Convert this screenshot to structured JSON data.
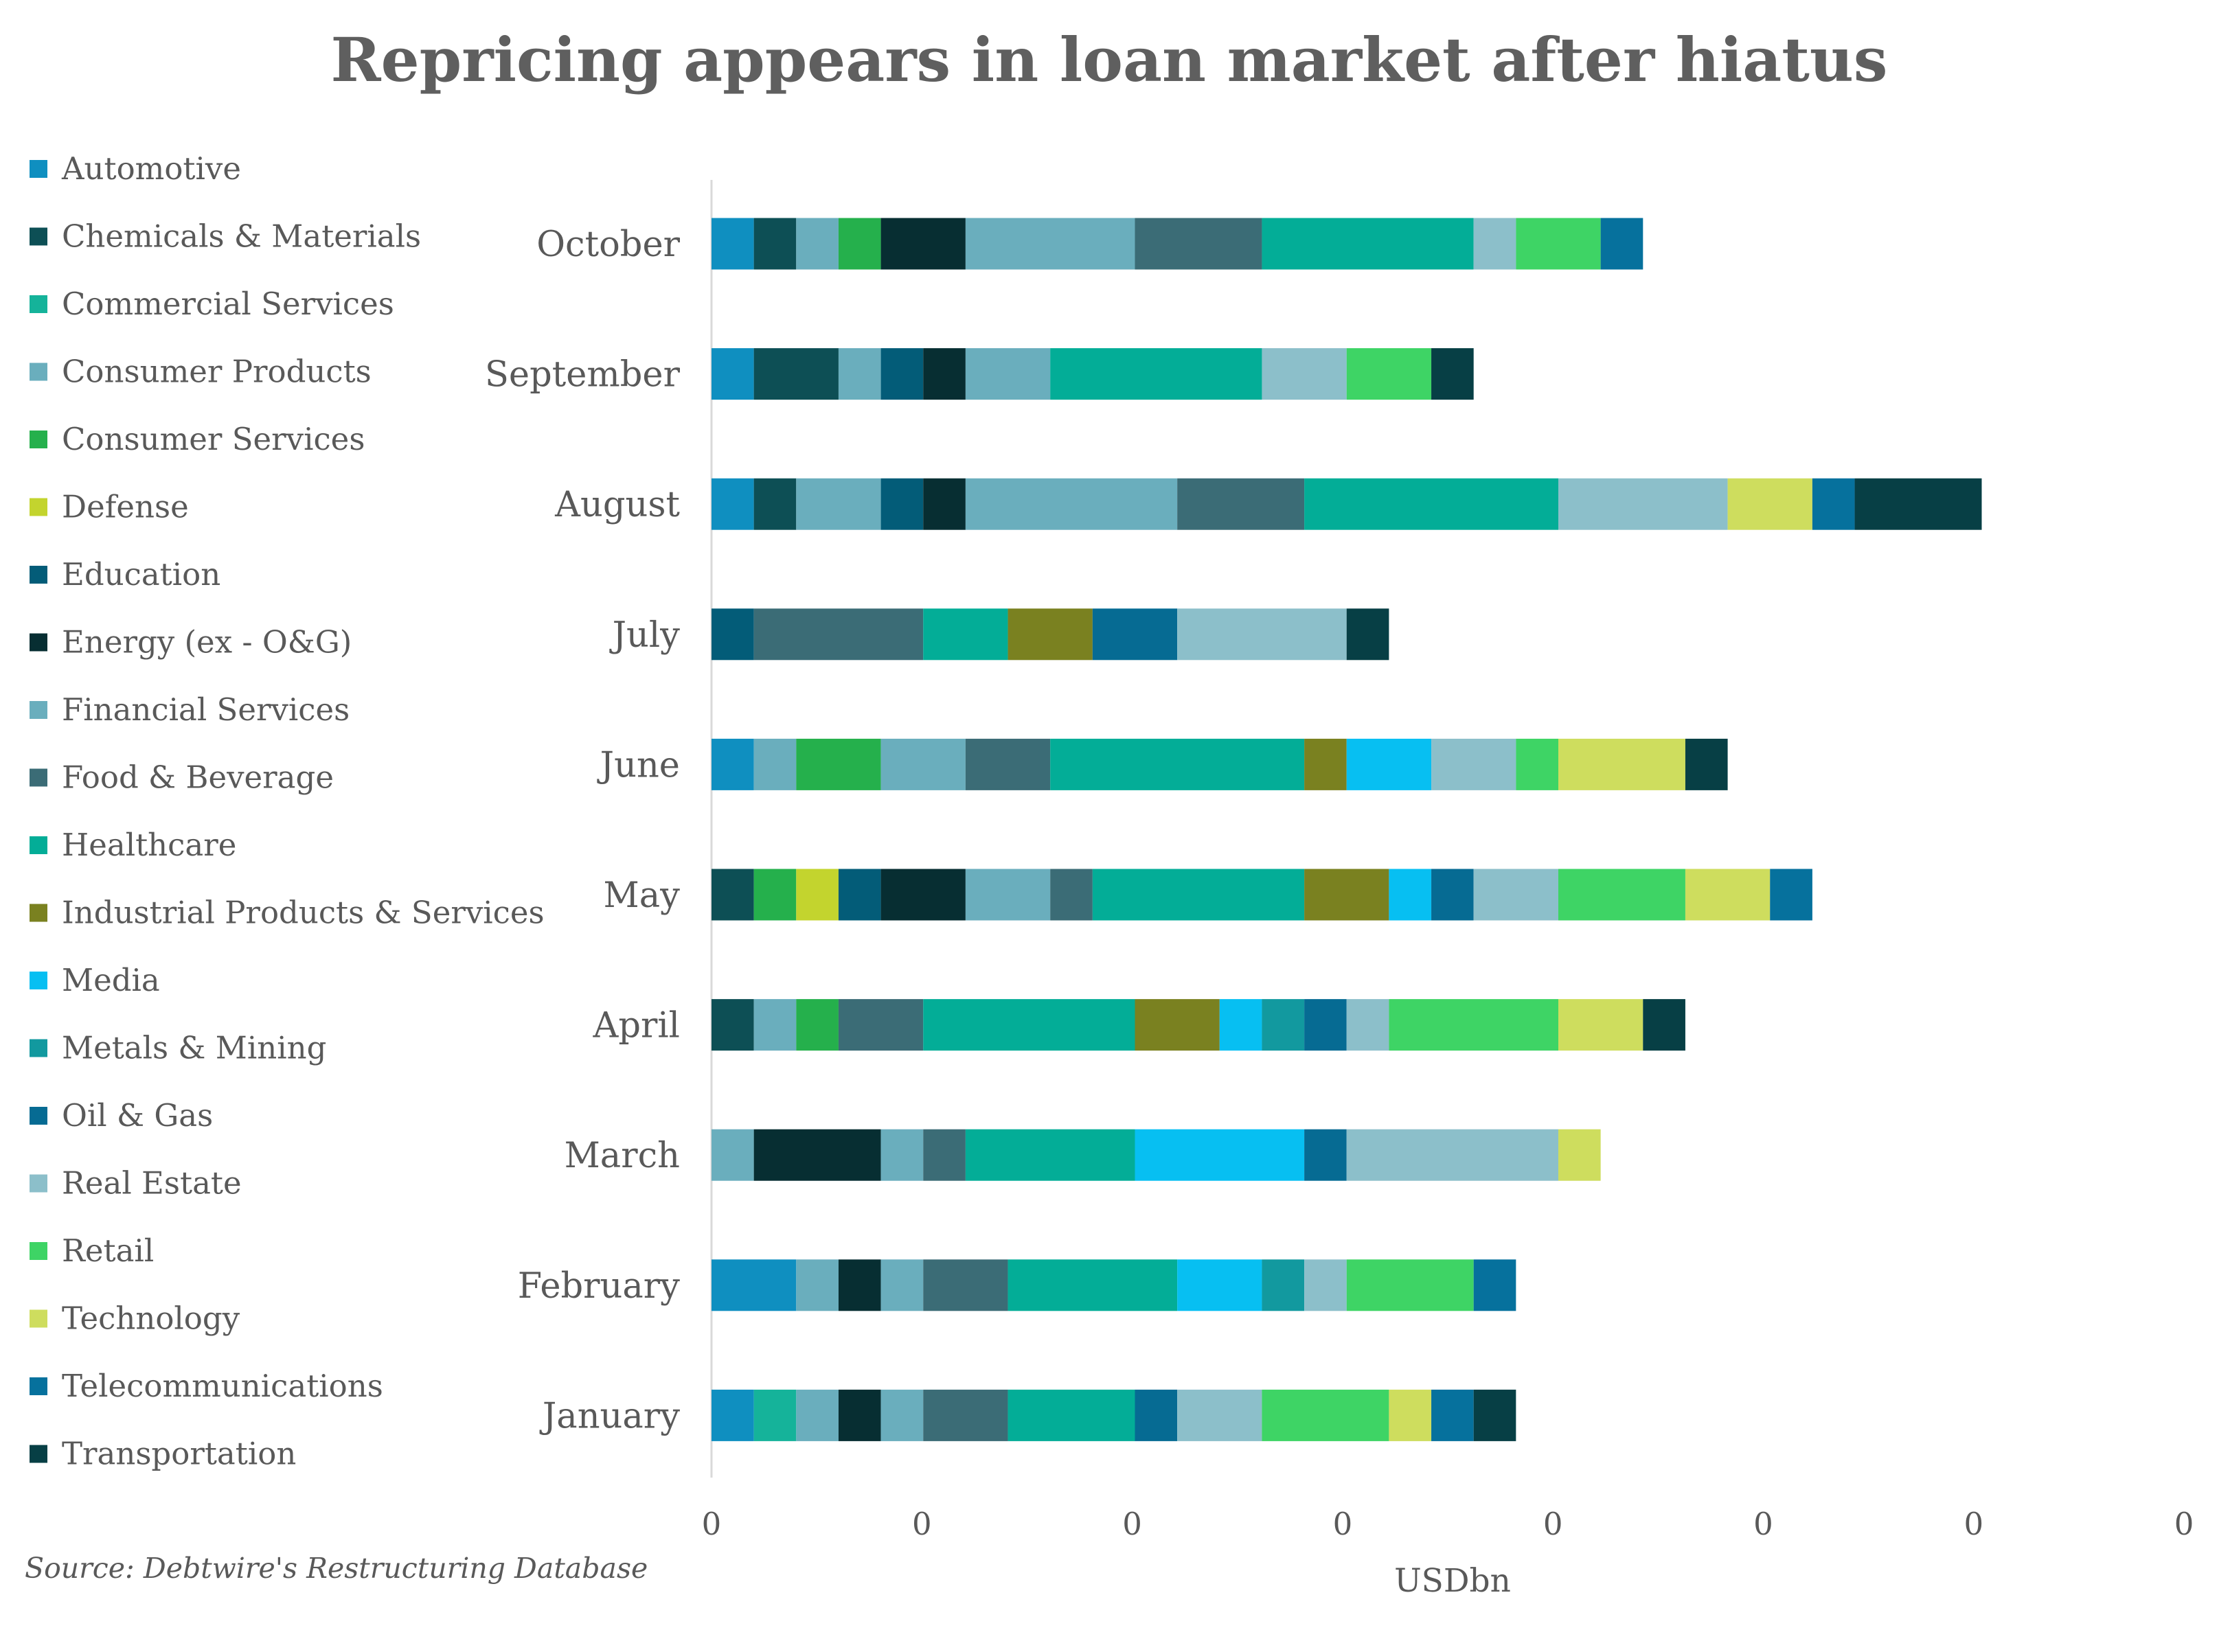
{
  "chart_data": {
    "type": "bar",
    "orientation": "horizontal",
    "stacked": true,
    "title": "Repricing appears in loan market after hiatus",
    "xlabel": "USDbn",
    "source": "Source: Debtwire's Restructuring Database",
    "legend_position": "left",
    "grid": false,
    "x_tick_labels": [
      "0",
      "0",
      "0",
      "0",
      "0",
      "0",
      "0",
      "0"
    ],
    "categories": [
      "October",
      "September",
      "August",
      "July",
      "June",
      "May",
      "April",
      "March",
      "February",
      "January"
    ],
    "series": [
      {
        "name": "Automotive",
        "color": "#0f8fc0",
        "values": [
          1,
          1,
          1,
          0,
          1,
          0,
          0,
          0,
          2,
          1
        ]
      },
      {
        "name": "Chemicals & Materials",
        "color": "#0d4f55",
        "values": [
          1,
          2,
          1,
          0,
          0,
          1,
          1,
          0,
          0,
          0
        ]
      },
      {
        "name": "Commercial Services",
        "color": "#15b39a",
        "values": [
          0,
          0,
          0,
          0,
          0,
          0,
          0,
          0,
          0,
          1
        ]
      },
      {
        "name": "Consumer Products",
        "color": "#6aaebd",
        "values": [
          1,
          1,
          2,
          0,
          1,
          0,
          1,
          1,
          1,
          1
        ]
      },
      {
        "name": "Consumer Services",
        "color": "#25b04c",
        "values": [
          1,
          0,
          0,
          0,
          2,
          1,
          1,
          0,
          0,
          0
        ]
      },
      {
        "name": "Defense",
        "color": "#c3d42e",
        "values": [
          0,
          0,
          0,
          0,
          0,
          1,
          0,
          0,
          0,
          0
        ]
      },
      {
        "name": "Education",
        "color": "#035c78",
        "values": [
          0,
          1,
          1,
          1,
          0,
          1,
          0,
          0,
          0,
          0
        ]
      },
      {
        "name": "Energy (ex - O&G)",
        "color": "#072e32",
        "values": [
          2,
          1,
          1,
          0,
          0,
          2,
          0,
          3,
          1,
          1
        ]
      },
      {
        "name": "Financial Services",
        "color": "#6aaebd",
        "values": [
          4,
          2,
          5,
          0,
          2,
          2,
          0,
          1,
          1,
          1
        ]
      },
      {
        "name": "Food & Beverage",
        "color": "#3b6c76",
        "values": [
          3,
          0,
          3,
          4,
          2,
          1,
          2,
          1,
          2,
          2
        ]
      },
      {
        "name": "Healthcare",
        "color": "#03ad97",
        "values": [
          5,
          5,
          6,
          2,
          6,
          5,
          5,
          4,
          4,
          3
        ]
      },
      {
        "name": "Industrial Products & Services",
        "color": "#7a8120",
        "values": [
          0,
          0,
          0,
          2,
          1,
          2,
          2,
          0,
          0,
          0
        ]
      },
      {
        "name": "Media",
        "color": "#07bff2",
        "values": [
          0,
          0,
          0,
          0,
          2,
          1,
          1,
          4,
          2,
          0
        ]
      },
      {
        "name": "Metals & Mining",
        "color": "#12999f",
        "values": [
          0,
          0,
          0,
          0,
          0,
          0,
          1,
          0,
          1,
          0
        ]
      },
      {
        "name": "Oil & Gas",
        "color": "#066b93",
        "values": [
          0,
          0,
          0,
          2,
          0,
          1,
          1,
          1,
          0,
          1
        ]
      },
      {
        "name": "Real Estate",
        "color": "#8cbfca",
        "values": [
          1,
          2,
          4,
          4,
          2,
          2,
          1,
          5,
          1,
          2
        ]
      },
      {
        "name": "Retail",
        "color": "#3ed465",
        "values": [
          2,
          2,
          0,
          0,
          1,
          3,
          4,
          0,
          3,
          3
        ]
      },
      {
        "name": "Technology",
        "color": "#cedd5e",
        "values": [
          0,
          0,
          2,
          0,
          3,
          2,
          2,
          1,
          0,
          1
        ]
      },
      {
        "name": "Telecommunications",
        "color": "#06719d",
        "values": [
          1,
          0,
          1,
          0,
          0,
          1,
          0,
          0,
          1,
          1
        ]
      },
      {
        "name": "Transportation",
        "color": "#073f45",
        "values": [
          0,
          1,
          3,
          1,
          1,
          0,
          1,
          0,
          0,
          1
        ]
      }
    ]
  }
}
